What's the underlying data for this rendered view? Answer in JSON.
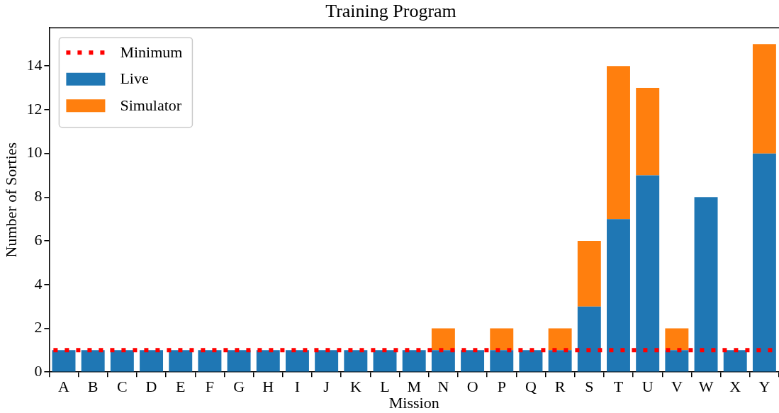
{
  "chart_data": {
    "type": "bar",
    "title": "Training Program",
    "xlabel": "Mission",
    "ylabel": "Number of Sorties",
    "categories": [
      "A",
      "B",
      "C",
      "D",
      "E",
      "F",
      "G",
      "H",
      "I",
      "J",
      "K",
      "L",
      "M",
      "N",
      "O",
      "P",
      "Q",
      "R",
      "S",
      "T",
      "U",
      "V",
      "W",
      "X",
      "Y"
    ],
    "stacked": true,
    "series": [
      {
        "name": "Live",
        "color": "#1f77b4",
        "values": [
          1,
          1,
          1,
          1,
          1,
          1,
          1,
          1,
          1,
          1,
          1,
          1,
          1,
          1,
          1,
          1,
          1,
          1,
          3,
          7,
          9,
          1,
          8,
          1,
          10
        ]
      },
      {
        "name": "Simulator",
        "color": "#ff7f0e",
        "values": [
          0,
          0,
          0,
          0,
          0,
          0,
          0,
          0,
          0,
          0,
          0,
          0,
          0,
          1,
          0,
          1,
          0,
          1,
          3,
          7,
          4,
          1,
          0,
          0,
          5
        ]
      }
    ],
    "ref_lines": [
      {
        "axis": "y",
        "value": 1,
        "label": "Minimum",
        "color": "#ff0000",
        "line_style": "dotted"
      }
    ],
    "ylim": [
      0,
      15.75
    ],
    "yticks": [
      0,
      2,
      4,
      6,
      8,
      10,
      12,
      14
    ],
    "grid": false,
    "legend": "top left"
  }
}
